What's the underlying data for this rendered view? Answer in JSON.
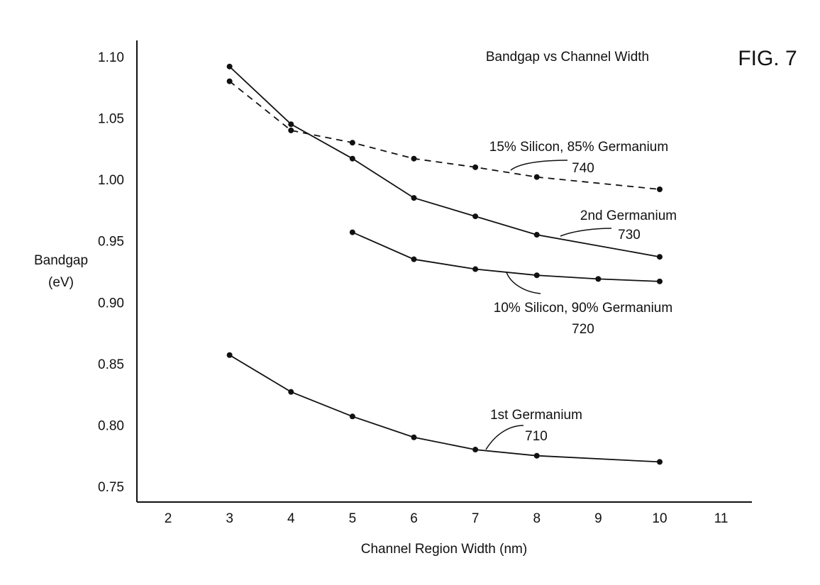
{
  "figure_label": "FIG. 7",
  "chart_data": {
    "type": "line",
    "title": "Bandgap vs Channel Width",
    "xlabel": "Channel Region Width (nm)",
    "ylabel_line1": "Bandgap",
    "ylabel_line2": "(eV)",
    "xlim": [
      1.5,
      11.5
    ],
    "ylim": [
      0.738,
      1.12
    ],
    "xticks": [
      2,
      3,
      4,
      5,
      6,
      7,
      8,
      9,
      10,
      11
    ],
    "xtick_labels": [
      "2",
      "3",
      "4",
      "5",
      "6",
      "7",
      "8",
      "9",
      "10",
      "11"
    ],
    "yticks": [
      0.75,
      0.8,
      0.85,
      0.9,
      0.95,
      1.0,
      1.05,
      1.1
    ],
    "ytick_labels": [
      "0.75",
      "0.80",
      "0.85",
      "0.90",
      "0.95",
      "1.00",
      "1.05",
      "1.10"
    ],
    "grid": false,
    "legend": "none",
    "series": [
      {
        "name": "1st Germanium",
        "ref": "710",
        "style": "solid",
        "x": [
          3,
          4,
          5,
          6,
          7,
          8,
          10
        ],
        "y": [
          0.857,
          0.827,
          0.807,
          0.79,
          0.78,
          0.775,
          0.77
        ]
      },
      {
        "name": "10% Silicon, 90% Germanium",
        "ref": "720",
        "style": "solid",
        "x": [
          5,
          6,
          7,
          8,
          9,
          10
        ],
        "y": [
          0.957,
          0.935,
          0.927,
          0.922,
          0.919,
          0.917
        ]
      },
      {
        "name": "2nd Germanium",
        "ref": "730",
        "style": "solid",
        "x": [
          3,
          4,
          5,
          6,
          7,
          8,
          10
        ],
        "y": [
          1.092,
          1.045,
          1.017,
          0.985,
          0.97,
          0.955,
          0.937
        ]
      },
      {
        "name": "15% Silicon, 85% Germanium",
        "ref": "740",
        "style": "dashed",
        "x": [
          3,
          4,
          5,
          6,
          7,
          8,
          10
        ],
        "y": [
          1.08,
          1.04,
          1.03,
          1.017,
          1.01,
          1.002,
          0.992
        ]
      }
    ]
  }
}
